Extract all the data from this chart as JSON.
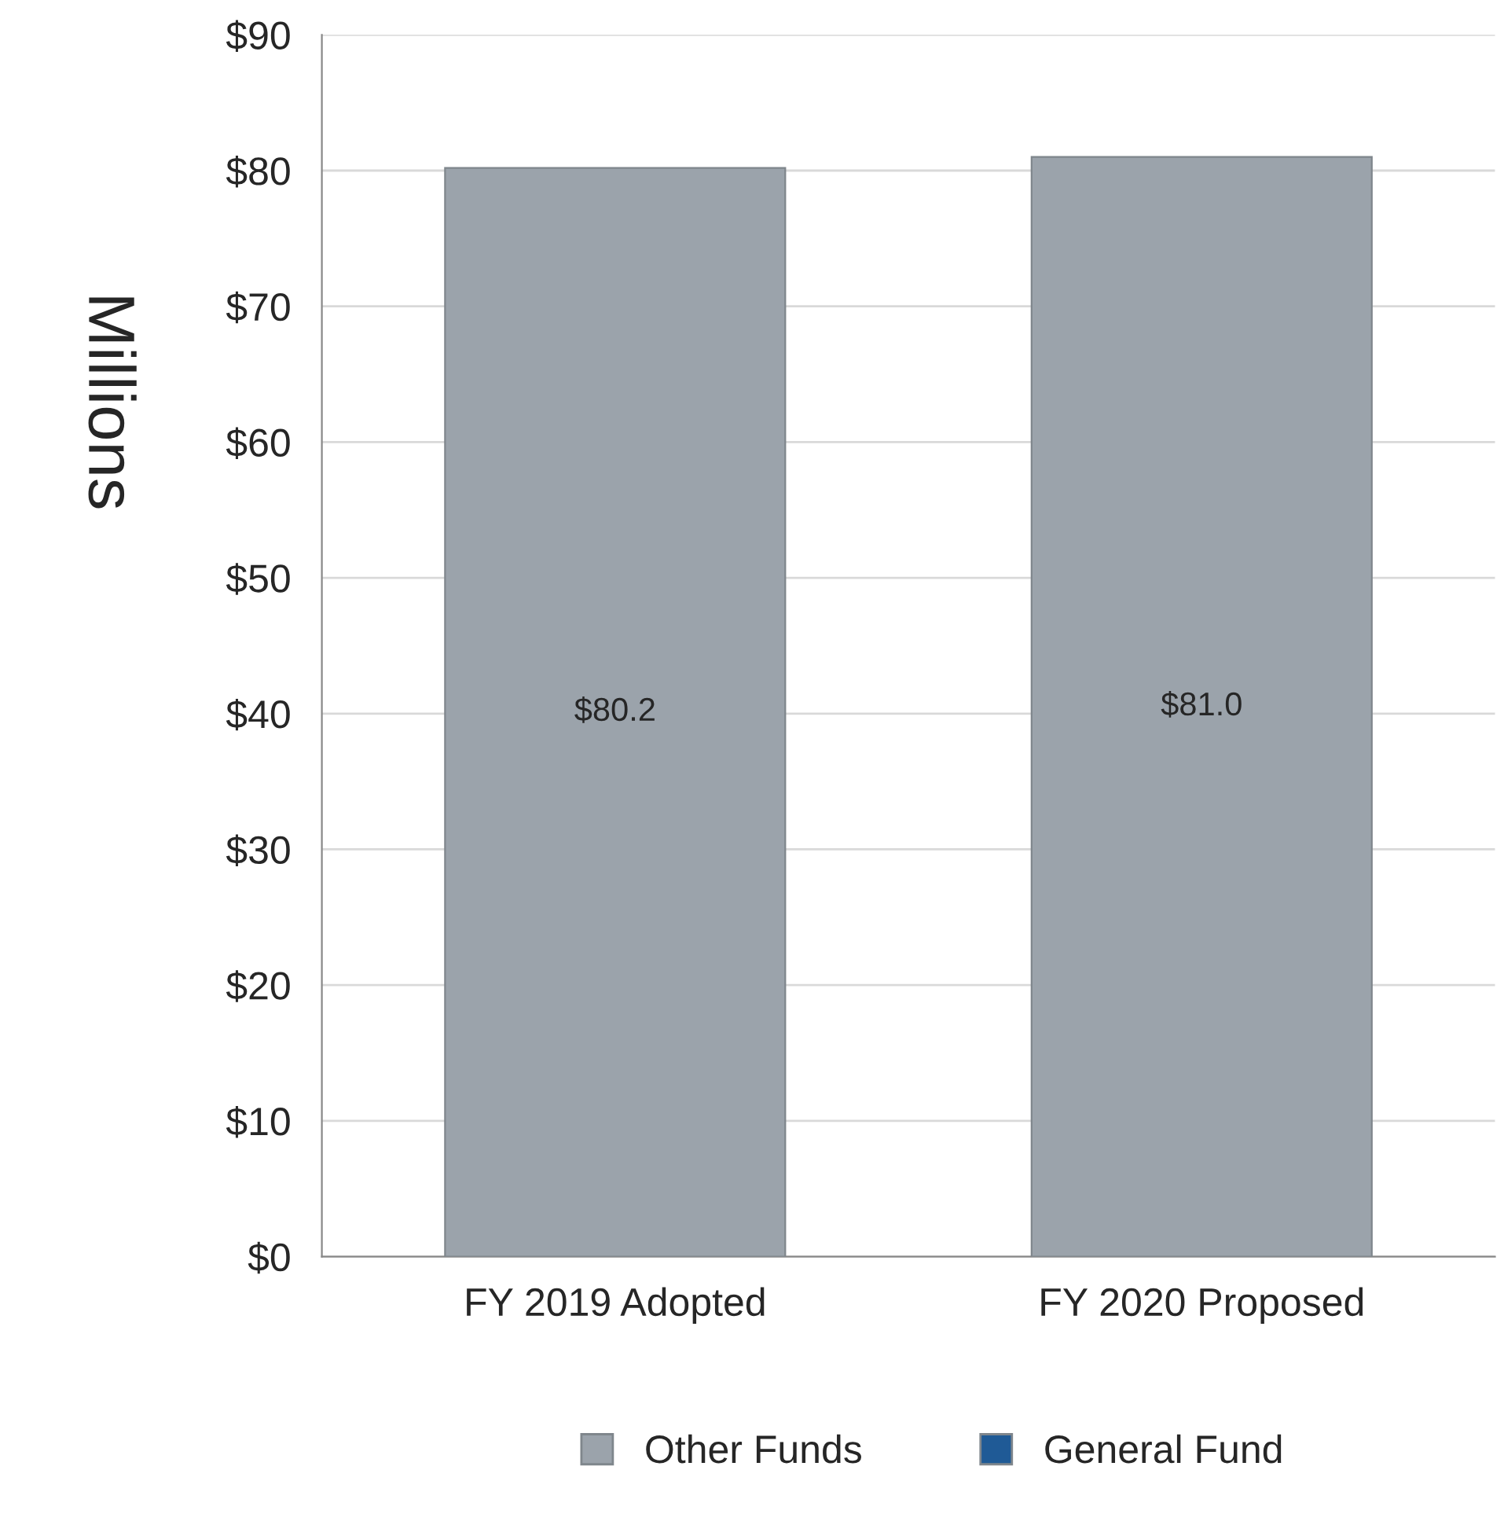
{
  "chart_data": {
    "type": "bar",
    "ylabel": "Millions",
    "categories": [
      "FY 2019 Adopted",
      "FY 2020 Proposed"
    ],
    "series": [
      {
        "name": "Other Funds",
        "color": "#9ba3ab",
        "values": [
          80.2,
          81.0
        ],
        "value_labels": [
          "$80.2",
          "$81.0"
        ]
      },
      {
        "name": "General Fund",
        "color": "#1f5a96",
        "values": [
          null,
          null
        ]
      }
    ],
    "ylim": [
      0,
      90
    ],
    "yticks": [
      {
        "value": 0,
        "label": "$0"
      },
      {
        "value": 10,
        "label": "$10"
      },
      {
        "value": 20,
        "label": "$20"
      },
      {
        "value": 30,
        "label": "$30"
      },
      {
        "value": 40,
        "label": "$40"
      },
      {
        "value": 50,
        "label": "$50"
      },
      {
        "value": 60,
        "label": "$60"
      },
      {
        "value": 70,
        "label": "$70"
      },
      {
        "value": 80,
        "label": "$80"
      },
      {
        "value": 90,
        "label": "$90"
      }
    ],
    "grid": "y",
    "legend": "bottom"
  }
}
